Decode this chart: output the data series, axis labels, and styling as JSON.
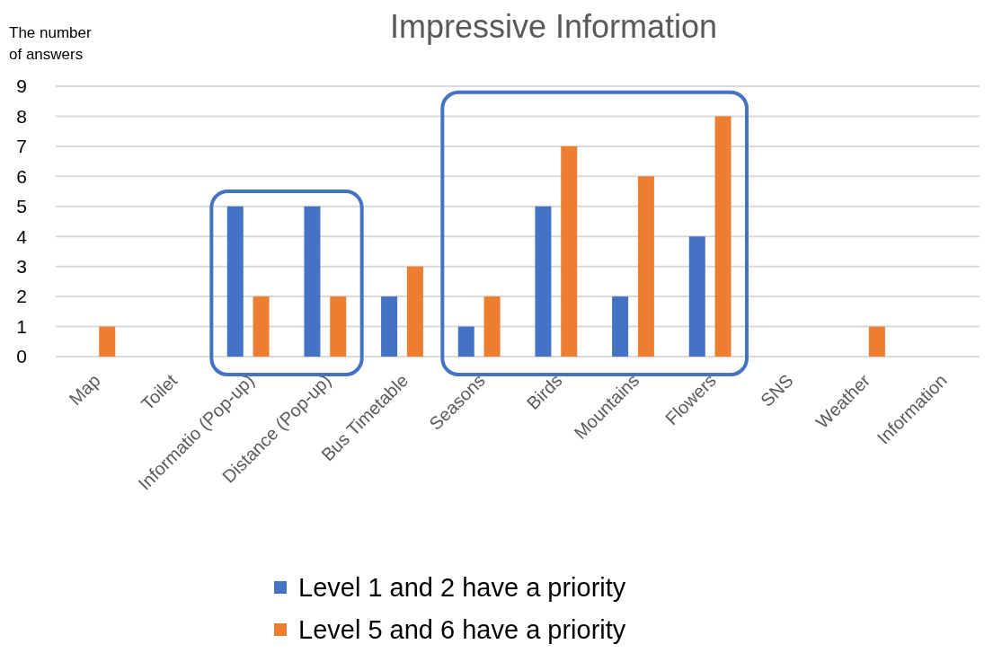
{
  "chart_data": {
    "type": "bar",
    "title": "Impressive Information",
    "ylabel": "The number of answers",
    "categories": [
      "Map",
      "Toilet",
      "Informatio (Pop-up)",
      "Distance (Pop-up)",
      "Bus Timetable",
      "Seasons",
      "Birds",
      "Mountains",
      "Flowers",
      "SNS",
      "Weather",
      "Information"
    ],
    "series": [
      {
        "name": "Level 1 and 2 have a priority",
        "color": "#4472c4",
        "values": [
          0,
          0,
          5,
          5,
          2,
          1,
          5,
          2,
          4,
          0,
          0,
          0
        ]
      },
      {
        "name": "Level 5 and 6 have a priority",
        "color": "#ed7d31",
        "values": [
          1,
          0,
          2,
          2,
          3,
          2,
          7,
          6,
          8,
          0,
          1,
          0
        ]
      }
    ],
    "ylim": [
      0,
      9
    ],
    "yticks": [
      0,
      1,
      2,
      3,
      4,
      5,
      6,
      7,
      8,
      9
    ],
    "grid": "y",
    "legend": "bottom"
  }
}
